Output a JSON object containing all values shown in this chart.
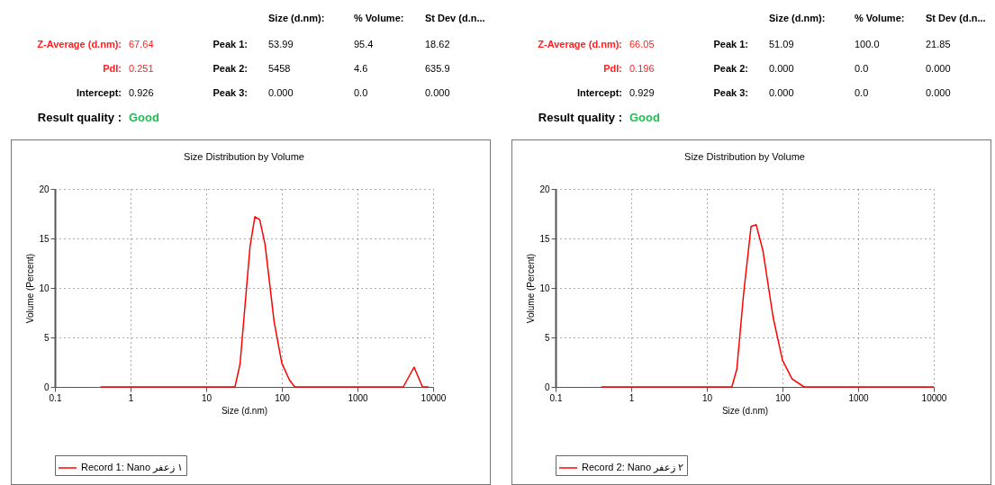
{
  "chart_data": [
    {
      "type": "line",
      "title": "Size Distribution by Volume",
      "xlabel": "Size (d.nm)",
      "ylabel": "Volume (Percent)",
      "annotations": [
        "Size (d.nm):",
        "% Volume:",
        "St Dev (d.n...",
        "Z-Average (d.nm):",
        "67.64",
        "Peak 1:",
        "53.99",
        "95.4",
        "18.62",
        "PdI:",
        "0.251",
        "Peak 2:",
        "5458",
        "4.6",
        "635.9",
        "Intercept:",
        "0.926",
        "Peak 3:",
        "0.000",
        "0.0",
        "0.000",
        "Result quality :",
        "Good"
      ],
      "series": [
        {
          "name": "Record 1: Nano ١ زعفر",
          "color": "#ff0000",
          "x": [
            0.4,
            24,
            28,
            38,
            44,
            51,
            60,
            79,
            100,
            126,
            148,
            4030,
            5600,
            7240,
            8700
          ],
          "values": [
            0,
            0,
            2.3,
            14.2,
            17.2,
            16.9,
            14.4,
            6.6,
            2.4,
            0.7,
            0,
            0,
            2,
            0,
            0
          ]
        }
      ],
      "log": "x",
      "xlim": [
        0.1,
        10000
      ],
      "xticks": [
        0.1,
        1,
        10,
        100,
        1000,
        10000
      ],
      "ylim": [
        0,
        20
      ],
      "yticks": [
        0,
        5,
        10,
        15,
        20
      ],
      "grid": true,
      "legend": "bottom",
      "line_style": "solid"
    },
    {
      "type": "line",
      "title": "Size Distribution by Volume",
      "xlabel": "Size (d.nm)",
      "ylabel": "Volume (Percent)",
      "annotations": [
        "Size (d.nm):",
        "% Volume:",
        "St Dev (d.n...",
        "Z-Average (d.nm):",
        "66.05",
        "Peak 1:",
        "51.09",
        "100.0",
        "21.85",
        "PdI:",
        "0.196",
        "Peak 2:",
        "0.000",
        "0.0",
        "0.000",
        "Intercept:",
        "0.929",
        "Peak 3:",
        "0.000",
        "0.0",
        "0.000",
        "Result quality :",
        "Good"
      ],
      "series": [
        {
          "name": "Record 2: Nano ٢ زعفر",
          "color": "#ff0000",
          "x": [
            0.4,
            21.4,
            24.9,
            30.7,
            38.4,
            44.8,
            55,
            75.3,
            100,
            134,
            193,
            10000
          ],
          "values": [
            0,
            0,
            1.8,
            9.5,
            16.2,
            16.4,
            13.8,
            7,
            2.7,
            0.8,
            0,
            0
          ]
        }
      ],
      "log": "x",
      "xlim": [
        0.1,
        10000
      ],
      "xticks": [
        0.1,
        1,
        10,
        100,
        1000,
        10000
      ],
      "ylim": [
        0,
        20
      ],
      "yticks": [
        0,
        5,
        10,
        15,
        20
      ],
      "grid": true,
      "legend": "bottom",
      "line_style": "solid"
    }
  ]
}
